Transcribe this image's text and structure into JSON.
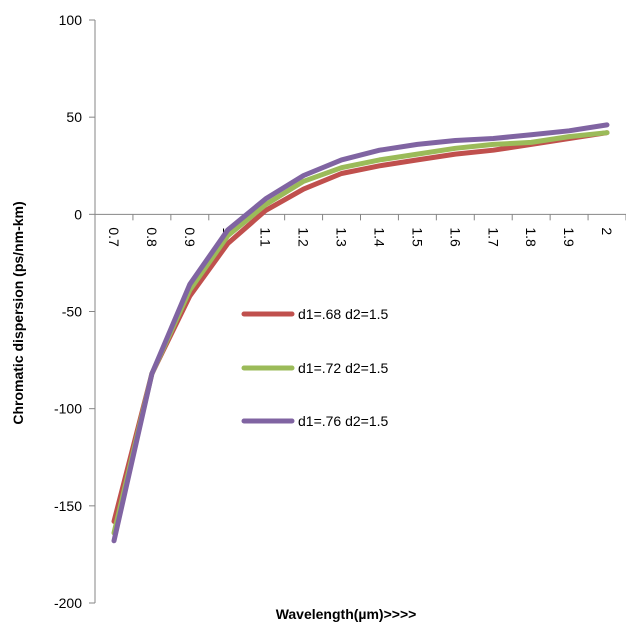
{
  "chart_data": {
    "type": "line",
    "title": "",
    "xlabel": "Wavelength(µm)>>>>",
    "ylabel": "Chromatic dispersion (ps/nm-km)",
    "x": [
      "0.7",
      "0.8",
      "0.9",
      "1",
      "1.1",
      "1.2",
      "1.3",
      "1.4",
      "1.5",
      "1.6",
      "1.7",
      "1.8",
      "1.9",
      "2"
    ],
    "ylim": [
      -200,
      100
    ],
    "yticks": [
      100,
      50,
      0,
      -50,
      -100,
      -150,
      -200
    ],
    "grid": false,
    "legend_position": "center",
    "series": [
      {
        "name": "d1=.68 d2=1.5",
        "color": "#C0504D",
        "values": [
          -158,
          -82,
          -42,
          -15,
          2,
          13,
          21,
          25,
          28,
          31,
          33,
          36,
          39,
          42
        ]
      },
      {
        "name": "d1=.72 d2=1.5",
        "color": "#9BBB59",
        "values": [
          -164,
          -82,
          -39,
          -11,
          5,
          17,
          24,
          28,
          31,
          34,
          36,
          37,
          40,
          42
        ]
      },
      {
        "name": "d1=.76 d2=1.5",
        "color": "#8064A2",
        "values": [
          -168,
          -82,
          -36,
          -8,
          8,
          20,
          28,
          33,
          36,
          38,
          39,
          41,
          43,
          46
        ]
      }
    ]
  }
}
